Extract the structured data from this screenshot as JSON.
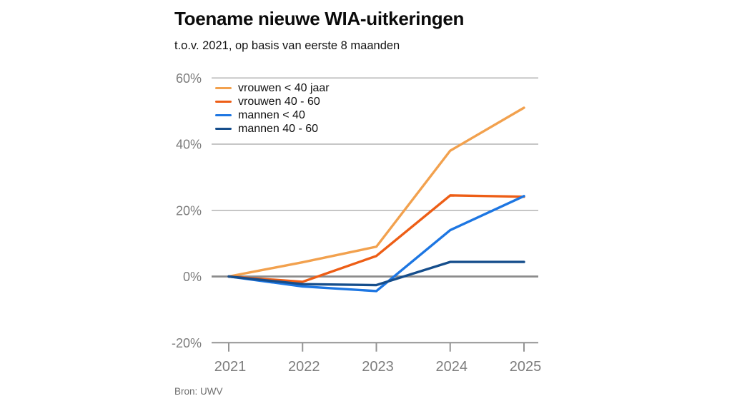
{
  "chart_data": {
    "type": "line",
    "title": "Toename nieuwe WIA-uitkeringen",
    "subtitle": "t.o.v. 2021, op basis van eerste 8 maanden",
    "source": "Bron: UWV",
    "x_categories": [
      "2021",
      "2022",
      "2023",
      "2024",
      "2025"
    ],
    "ylim": [
      -20,
      60
    ],
    "yticks": [
      {
        "value": 60,
        "label": "60%"
      },
      {
        "value": 40,
        "label": "40%"
      },
      {
        "value": 20,
        "label": "20%"
      },
      {
        "value": 0,
        "label": "0%"
      },
      {
        "value": -20,
        "label": "-20%"
      }
    ],
    "grid": true,
    "legend_position": "top-left inside plot area",
    "series": [
      {
        "name": "vrouwen < 40 jaar",
        "color": "#F2A14E",
        "values": [
          0,
          4.3,
          9,
          38,
          51
        ]
      },
      {
        "name": "vrouwen 40 - 60",
        "color": "#ED5E16",
        "values": [
          0,
          -1.6,
          6.2,
          24.5,
          24.1
        ]
      },
      {
        "name": "mannen < 40",
        "color": "#1D76E2",
        "values": [
          0,
          -3,
          -4.4,
          14,
          24.3
        ]
      },
      {
        "name": "mannen 40 - 60",
        "color": "#164E8C",
        "values": [
          0,
          -2.3,
          -2.6,
          4.4,
          4.4
        ]
      }
    ],
    "colors": {
      "grid_line": "#B3B3B3",
      "zero_line": "#8C8C8C",
      "axis_line": "#949494",
      "tick_label": "#7D7D7D",
      "title_text": "#0B0B0B",
      "source_text": "#6F6F6F"
    }
  }
}
